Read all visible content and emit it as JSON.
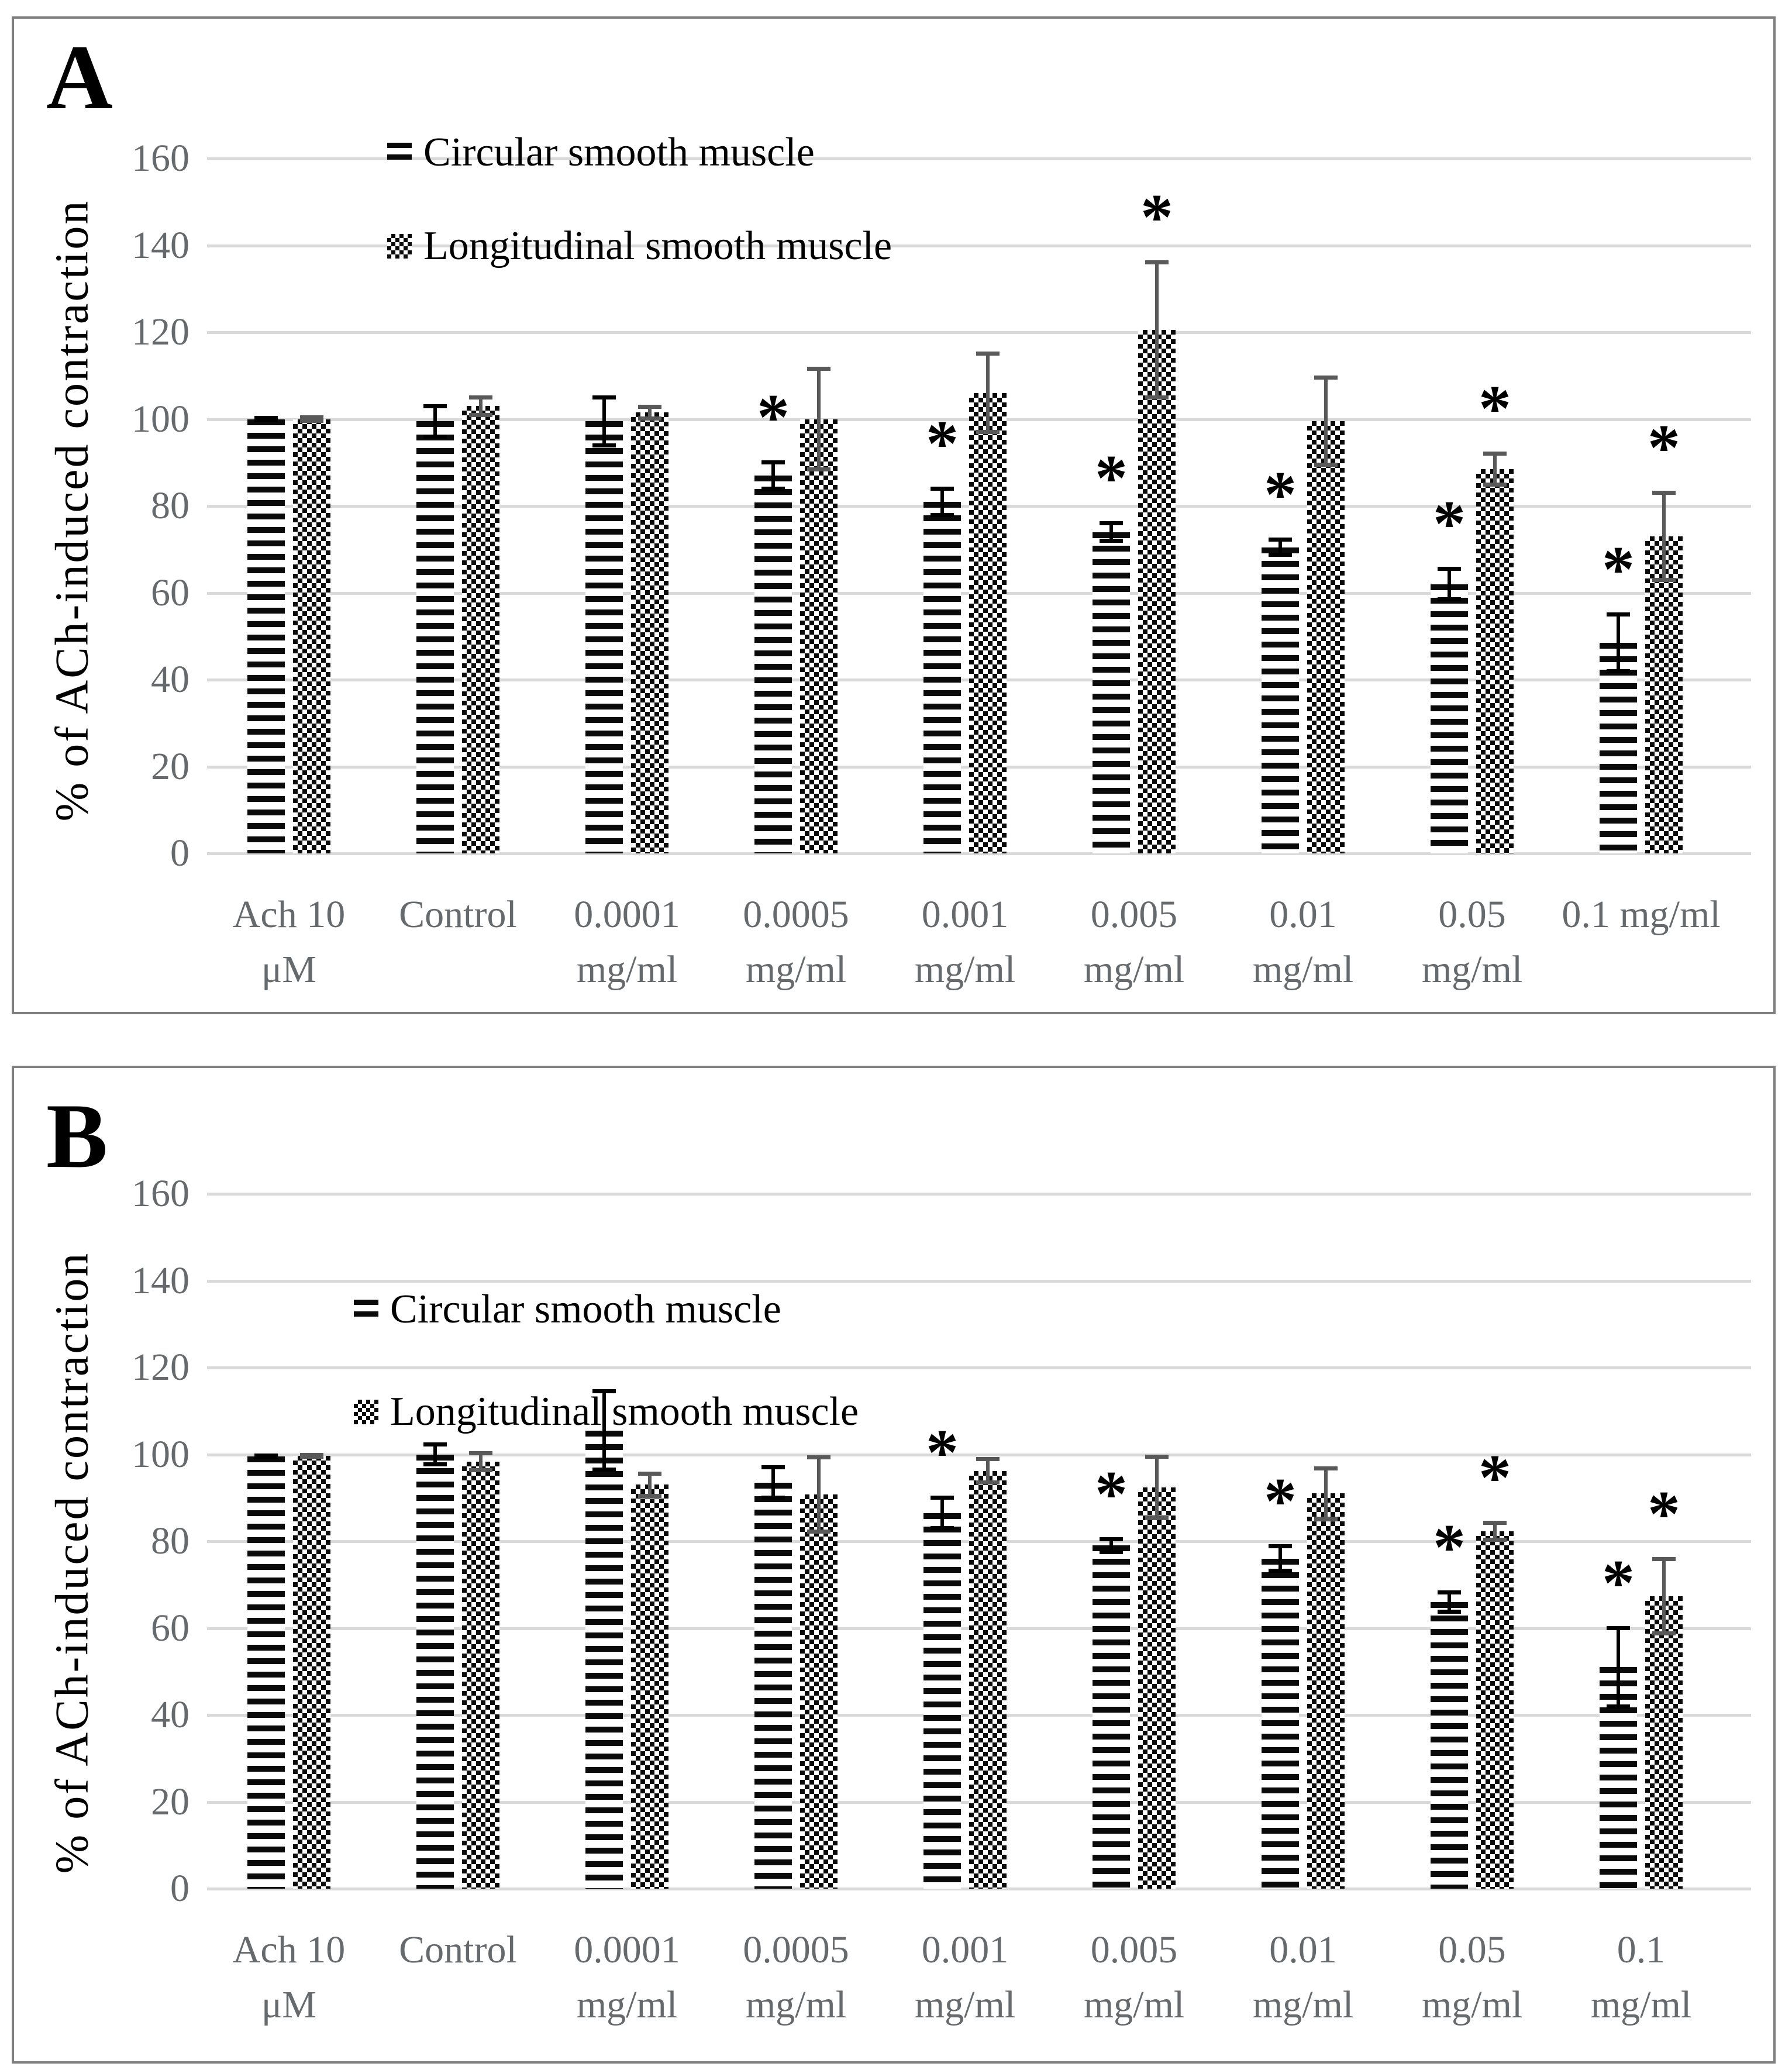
{
  "figure": {
    "background": "#ffffff",
    "border_color": "#7f7f7f",
    "gridline_color": "#d9d9d9",
    "tick_label_color": "#666a6d",
    "circular_pattern_color": "#000000",
    "longitudinal_pattern_color": "#000000",
    "circular_errorbar_color": "#000000",
    "longitudinal_errorbar_color": "#595959"
  },
  "legend": {
    "circular": "Circular smooth muscle",
    "longitudinal": "Longitudinal smooth muscle"
  },
  "y_axis": {
    "title": "% of ACh-induced contraction",
    "ticks": [
      "0",
      "20",
      "40",
      "60",
      "80",
      "100",
      "120",
      "140",
      "160"
    ]
  },
  "significance_marker": "*",
  "chart_data": [
    {
      "type": "bar",
      "panel_label": "A",
      "title": "",
      "xlabel": "",
      "ylabel": "% of ACh-induced contraction",
      "ylim": [
        0,
        160
      ],
      "ytick_step": 20,
      "grid": true,
      "legend_position": "top-left-inside",
      "categories": [
        "Ach 10 μM",
        "Control",
        "0.0001 mg/ml",
        "0.0005 mg/ml",
        "0.001 mg/ml",
        "0.005 mg/ml",
        "0.01 mg/ml",
        "0.05 mg/ml",
        "0.1 mg/ml"
      ],
      "category_label_lines": [
        [
          "Ach 10",
          "μM"
        ],
        [
          "Control"
        ],
        [
          "0.0001",
          "mg/ml"
        ],
        [
          "0.0005",
          "mg/ml"
        ],
        [
          "0.001",
          "mg/ml"
        ],
        [
          "0.005",
          "mg/ml"
        ],
        [
          "0.01",
          "mg/ml"
        ],
        [
          "0.05",
          "mg/ml"
        ],
        [
          "0.1 mg/ml"
        ]
      ],
      "series": [
        {
          "name": "Circular smooth muscle",
          "values": [
            100,
            99.5,
            99.5,
            87,
            81,
            74,
            70.5,
            62,
            48.5
          ],
          "errors": [
            0.8,
            4,
            6,
            3.5,
            3.5,
            2.5,
            2.2,
            4,
            7
          ],
          "significant": [
            false,
            false,
            false,
            true,
            true,
            true,
            true,
            true,
            true
          ]
        },
        {
          "name": "Longitudinal smooth muscle",
          "values": [
            100,
            103,
            101.5,
            100,
            106,
            120.5,
            99.5,
            88.5,
            73
          ],
          "errors": [
            0.9,
            2.5,
            1.8,
            12,
            9.5,
            16,
            10.5,
            4,
            10.5
          ],
          "significant": [
            false,
            false,
            false,
            false,
            false,
            true,
            false,
            true,
            true
          ]
        }
      ]
    },
    {
      "type": "bar",
      "panel_label": "B",
      "title": "",
      "xlabel": "",
      "ylabel": "% of ACh-induced contraction",
      "ylim": [
        0,
        160
      ],
      "ytick_step": 20,
      "grid": true,
      "legend_position": "top-left-inside",
      "categories": [
        "Ach 10 μM",
        "Control",
        "0.0001 mg/ml",
        "0.0005 mg/ml",
        "0.001 mg/ml",
        "0.005 mg/ml",
        "0.01 mg/ml",
        "0.05 mg/ml",
        "0.1 mg/ml"
      ],
      "category_label_lines": [
        [
          "Ach 10",
          "μM"
        ],
        [
          "Control"
        ],
        [
          "0.0001",
          "mg/ml"
        ],
        [
          "0.0005",
          "mg/ml"
        ],
        [
          "0.001",
          "mg/ml"
        ],
        [
          "0.005",
          "mg/ml"
        ],
        [
          "0.01",
          "mg/ml"
        ],
        [
          "0.05",
          "mg/ml"
        ],
        [
          "0.1",
          "mg/ml"
        ]
      ],
      "series": [
        {
          "name": "Circular smooth muscle",
          "values": [
            99.5,
            100,
            105.5,
            93.5,
            86.5,
            79,
            76,
            66,
            51
          ],
          "errors": [
            0.7,
            2.8,
            9.5,
            4,
            4,
            2,
            3.3,
            2.7,
            9.5
          ],
          "significant": [
            false,
            false,
            false,
            false,
            true,
            true,
            true,
            true,
            true
          ]
        },
        {
          "name": "Longitudinal smooth muscle",
          "values": [
            99.7,
            98.3,
            93,
            90.8,
            96.2,
            92.4,
            91,
            82.3,
            67.3
          ],
          "errors": [
            0.7,
            2.4,
            3,
            9,
            3.2,
            7.5,
            6.3,
            2.4,
            9
          ],
          "significant": [
            false,
            false,
            false,
            false,
            false,
            false,
            false,
            true,
            true
          ]
        }
      ]
    }
  ]
}
